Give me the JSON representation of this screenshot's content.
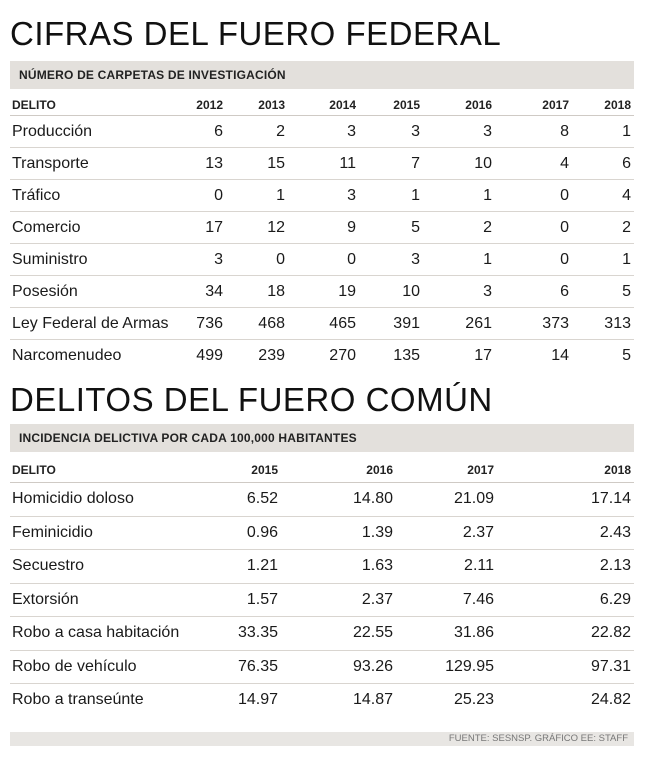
{
  "federal": {
    "title": "CIFRAS DEL FUERO FEDERAL",
    "subtitle": "NÚMERO DE CARPETAS DE INVESTIGACIÓN",
    "headers": [
      "DELITO",
      "2012",
      "2013",
      "2014",
      "2015",
      "2016",
      "2017",
      "2018"
    ],
    "rows": [
      [
        "Producción",
        "6",
        "2",
        "3",
        "3",
        "3",
        "8",
        "1"
      ],
      [
        "Transporte",
        "13",
        "15",
        "11",
        "7",
        "10",
        "4",
        "6"
      ],
      [
        "Tráfico",
        "0",
        "1",
        "3",
        "1",
        "1",
        "0",
        "4"
      ],
      [
        "Comercio",
        "17",
        "12",
        "9",
        "5",
        "2",
        "0",
        "2"
      ],
      [
        "Suministro",
        "3",
        "0",
        "0",
        "3",
        "1",
        "0",
        "1"
      ],
      [
        "Posesión",
        "34",
        "18",
        "19",
        "10",
        "3",
        "6",
        "5"
      ],
      [
        "Ley Federal de Armas",
        "736",
        "468",
        "465",
        "391",
        "261",
        "373",
        "313"
      ],
      [
        "Narcomenudeo",
        "499",
        "239",
        "270",
        "135",
        "17",
        "14",
        "5"
      ]
    ]
  },
  "comun": {
    "title": "DELITOS DEL FUERO COMÚN",
    "subtitle": "INCIDENCIA DELICTIVA POR CADA 100,000 HABITANTES",
    "headers": [
      "DELITO",
      "2015",
      "2016",
      "2017",
      "2018"
    ],
    "rows": [
      [
        "Homicidio doloso",
        "6.52",
        "14.80",
        "21.09",
        "17.14"
      ],
      [
        "Feminicidio",
        "0.96",
        "1.39",
        "2.37",
        "2.43"
      ],
      [
        "Secuestro",
        "1.21",
        "1.63",
        "2.11",
        "2.13"
      ],
      [
        "Extorsión",
        "1.57",
        "2.37",
        "7.46",
        "6.29"
      ],
      [
        "Robo a casa habitación",
        "33.35",
        "22.55",
        "31.86",
        "22.82"
      ],
      [
        "Robo de vehículo",
        "76.35",
        "93.26",
        "129.95",
        "97.31"
      ],
      [
        "Robo a transeúnte",
        "14.97",
        "14.87",
        "25.23",
        "24.82"
      ]
    ]
  },
  "footer": "FUENTE: SESNSP. GRÁFICO EE: STAFF"
}
